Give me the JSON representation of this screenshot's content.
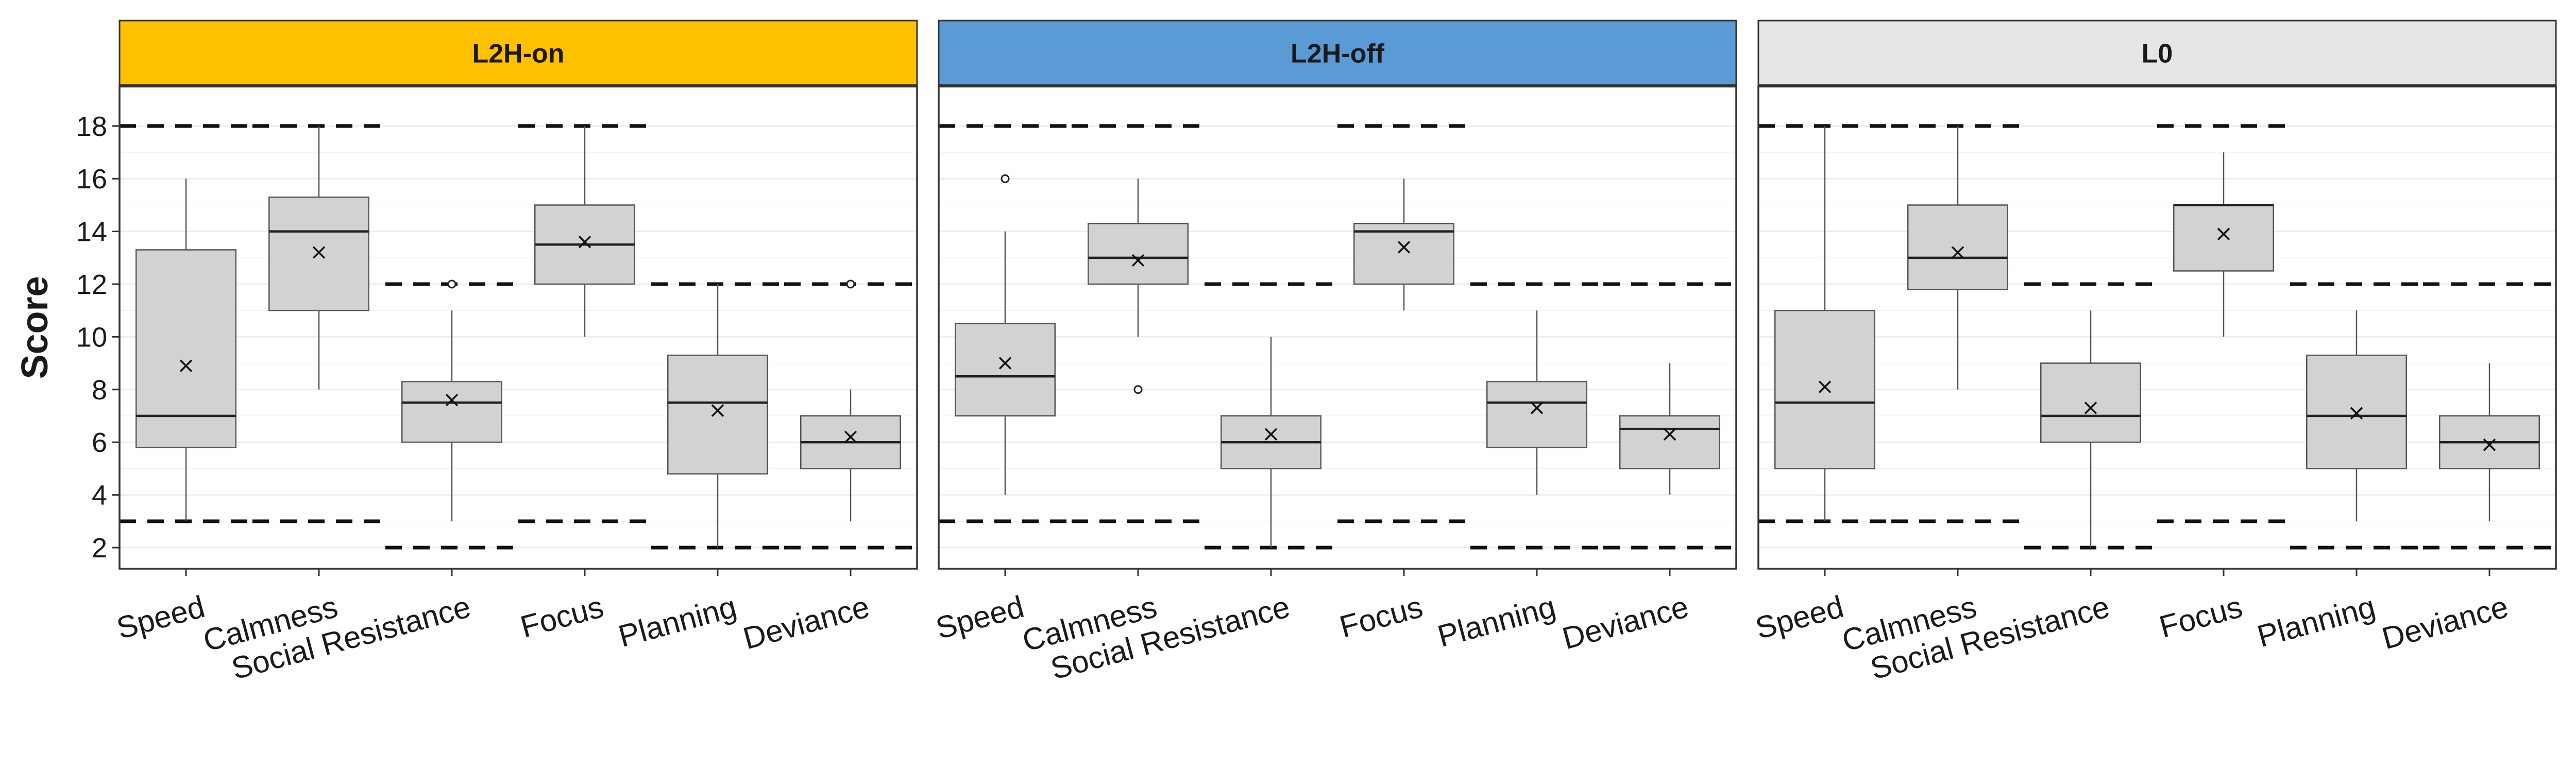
{
  "chart_data": {
    "type": "boxplot",
    "ylabel": "Score",
    "ylim": [
      1.2,
      19.5
    ],
    "yticks": [
      2,
      4,
      6,
      8,
      10,
      12,
      14,
      16,
      18
    ],
    "grid": true,
    "categories": [
      "Speed",
      "Calmness",
      "Social Resistance",
      "Focus",
      "Planning",
      "Deviance"
    ],
    "range_limits": [
      {
        "category": "Speed",
        "min": 3,
        "max": 18
      },
      {
        "category": "Calmness",
        "min": 3,
        "max": 18
      },
      {
        "category": "Social Resistance",
        "min": 2,
        "max": 12
      },
      {
        "category": "Focus",
        "min": 3,
        "max": 18
      },
      {
        "category": "Planning",
        "min": 2,
        "max": 12
      },
      {
        "category": "Deviance",
        "min": 2,
        "max": 12
      }
    ],
    "panels": [
      {
        "name": "L2H-on",
        "color": "#FFC000",
        "boxes": [
          {
            "category": "Speed",
            "whisker_low": 3,
            "q1": 5.8,
            "median": 7,
            "q3": 13.3,
            "whisker_high": 16,
            "mean": 8.9,
            "outliers": []
          },
          {
            "category": "Calmness",
            "whisker_low": 8,
            "q1": 11,
            "median": 14,
            "q3": 15.3,
            "whisker_high": 18,
            "mean": 13.2,
            "outliers": []
          },
          {
            "category": "Social Resistance",
            "whisker_low": 3,
            "q1": 6,
            "median": 7.5,
            "q3": 8.3,
            "whisker_high": 11,
            "mean": 7.6,
            "outliers": [
              12
            ]
          },
          {
            "category": "Focus",
            "whisker_low": 10,
            "q1": 12,
            "median": 13.5,
            "q3": 15,
            "whisker_high": 18,
            "mean": 13.6,
            "outliers": []
          },
          {
            "category": "Planning",
            "whisker_low": 2,
            "q1": 4.8,
            "median": 7.5,
            "q3": 9.3,
            "whisker_high": 12,
            "mean": 7.2,
            "outliers": []
          },
          {
            "category": "Deviance",
            "whisker_low": 3,
            "q1": 5,
            "median": 6,
            "q3": 7,
            "whisker_high": 8,
            "mean": 6.2,
            "outliers": [
              12
            ]
          }
        ]
      },
      {
        "name": "L2H-off",
        "color": "#5B9BD5",
        "boxes": [
          {
            "category": "Speed",
            "whisker_low": 4,
            "q1": 7,
            "median": 8.5,
            "q3": 10.5,
            "whisker_high": 14,
            "mean": 9,
            "outliers": [
              16
            ]
          },
          {
            "category": "Calmness",
            "whisker_low": 10,
            "q1": 12,
            "median": 13,
            "q3": 14.3,
            "whisker_high": 16,
            "mean": 12.9,
            "outliers": [
              8
            ]
          },
          {
            "category": "Social Resistance",
            "whisker_low": 2,
            "q1": 5,
            "median": 6,
            "q3": 7,
            "whisker_high": 10,
            "mean": 6.3,
            "outliers": []
          },
          {
            "category": "Focus",
            "whisker_low": 11,
            "q1": 12,
            "median": 14,
            "q3": 14.3,
            "whisker_high": 16,
            "mean": 13.4,
            "outliers": []
          },
          {
            "category": "Planning",
            "whisker_low": 4,
            "q1": 5.8,
            "median": 7.5,
            "q3": 8.3,
            "whisker_high": 11,
            "mean": 7.3,
            "outliers": []
          },
          {
            "category": "Deviance",
            "whisker_low": 4,
            "q1": 5,
            "median": 6.5,
            "q3": 7,
            "whisker_high": 9,
            "mean": 6.3,
            "outliers": []
          }
        ]
      },
      {
        "name": "L0",
        "color": "#E6E6E6",
        "boxes": [
          {
            "category": "Speed",
            "whisker_low": 3,
            "q1": 5,
            "median": 7.5,
            "q3": 11,
            "whisker_high": 18,
            "mean": 8.1,
            "outliers": []
          },
          {
            "category": "Calmness",
            "whisker_low": 8,
            "q1": 11.8,
            "median": 13,
            "q3": 15,
            "whisker_high": 18,
            "mean": 13.2,
            "outliers": []
          },
          {
            "category": "Social Resistance",
            "whisker_low": 2,
            "q1": 6,
            "median": 7,
            "q3": 9,
            "whisker_high": 11,
            "mean": 7.3,
            "outliers": []
          },
          {
            "category": "Focus",
            "whisker_low": 10,
            "q1": 12.5,
            "median": 15,
            "q3": 15,
            "whisker_high": 17,
            "mean": 13.9,
            "outliers": []
          },
          {
            "category": "Planning",
            "whisker_low": 3,
            "q1": 5,
            "median": 7,
            "q3": 9.3,
            "whisker_high": 11,
            "mean": 7.1,
            "outliers": []
          },
          {
            "category": "Deviance",
            "whisker_low": 3,
            "q1": 5,
            "median": 6,
            "q3": 7,
            "whisker_high": 9,
            "mean": 5.9,
            "outliers": []
          }
        ]
      }
    ]
  }
}
